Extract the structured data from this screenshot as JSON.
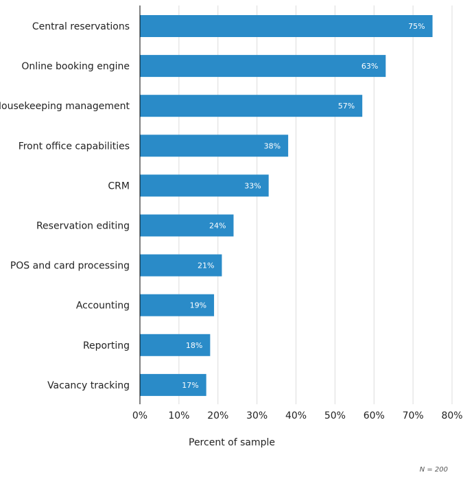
{
  "chart_data": {
    "type": "bar",
    "orientation": "horizontal",
    "categories": [
      "Central reservations",
      "Online booking engine",
      "Housekeeping management",
      "Front office capabilities",
      "CRM",
      "Reservation editing",
      "POS and card processing",
      "Accounting",
      "Reporting",
      "Vacancy tracking"
    ],
    "values": [
      75,
      63,
      57,
      38,
      33,
      24,
      21,
      19,
      18,
      17
    ],
    "value_labels": [
      "75%",
      "63%",
      "57%",
      "38%",
      "33%",
      "24%",
      "21%",
      "19%",
      "18%",
      "17%"
    ],
    "xlabel": "Percent of sample",
    "ylabel": "",
    "xlim": [
      0,
      80
    ],
    "xticks": [
      0,
      10,
      20,
      30,
      40,
      50,
      60,
      70,
      80
    ],
    "xtick_labels": [
      "0%",
      "10%",
      "20%",
      "30%",
      "40%",
      "50%",
      "60%",
      "70%",
      "80%"
    ],
    "grid": true,
    "bar_color": "#2a8bc8",
    "note": "N = 200"
  }
}
